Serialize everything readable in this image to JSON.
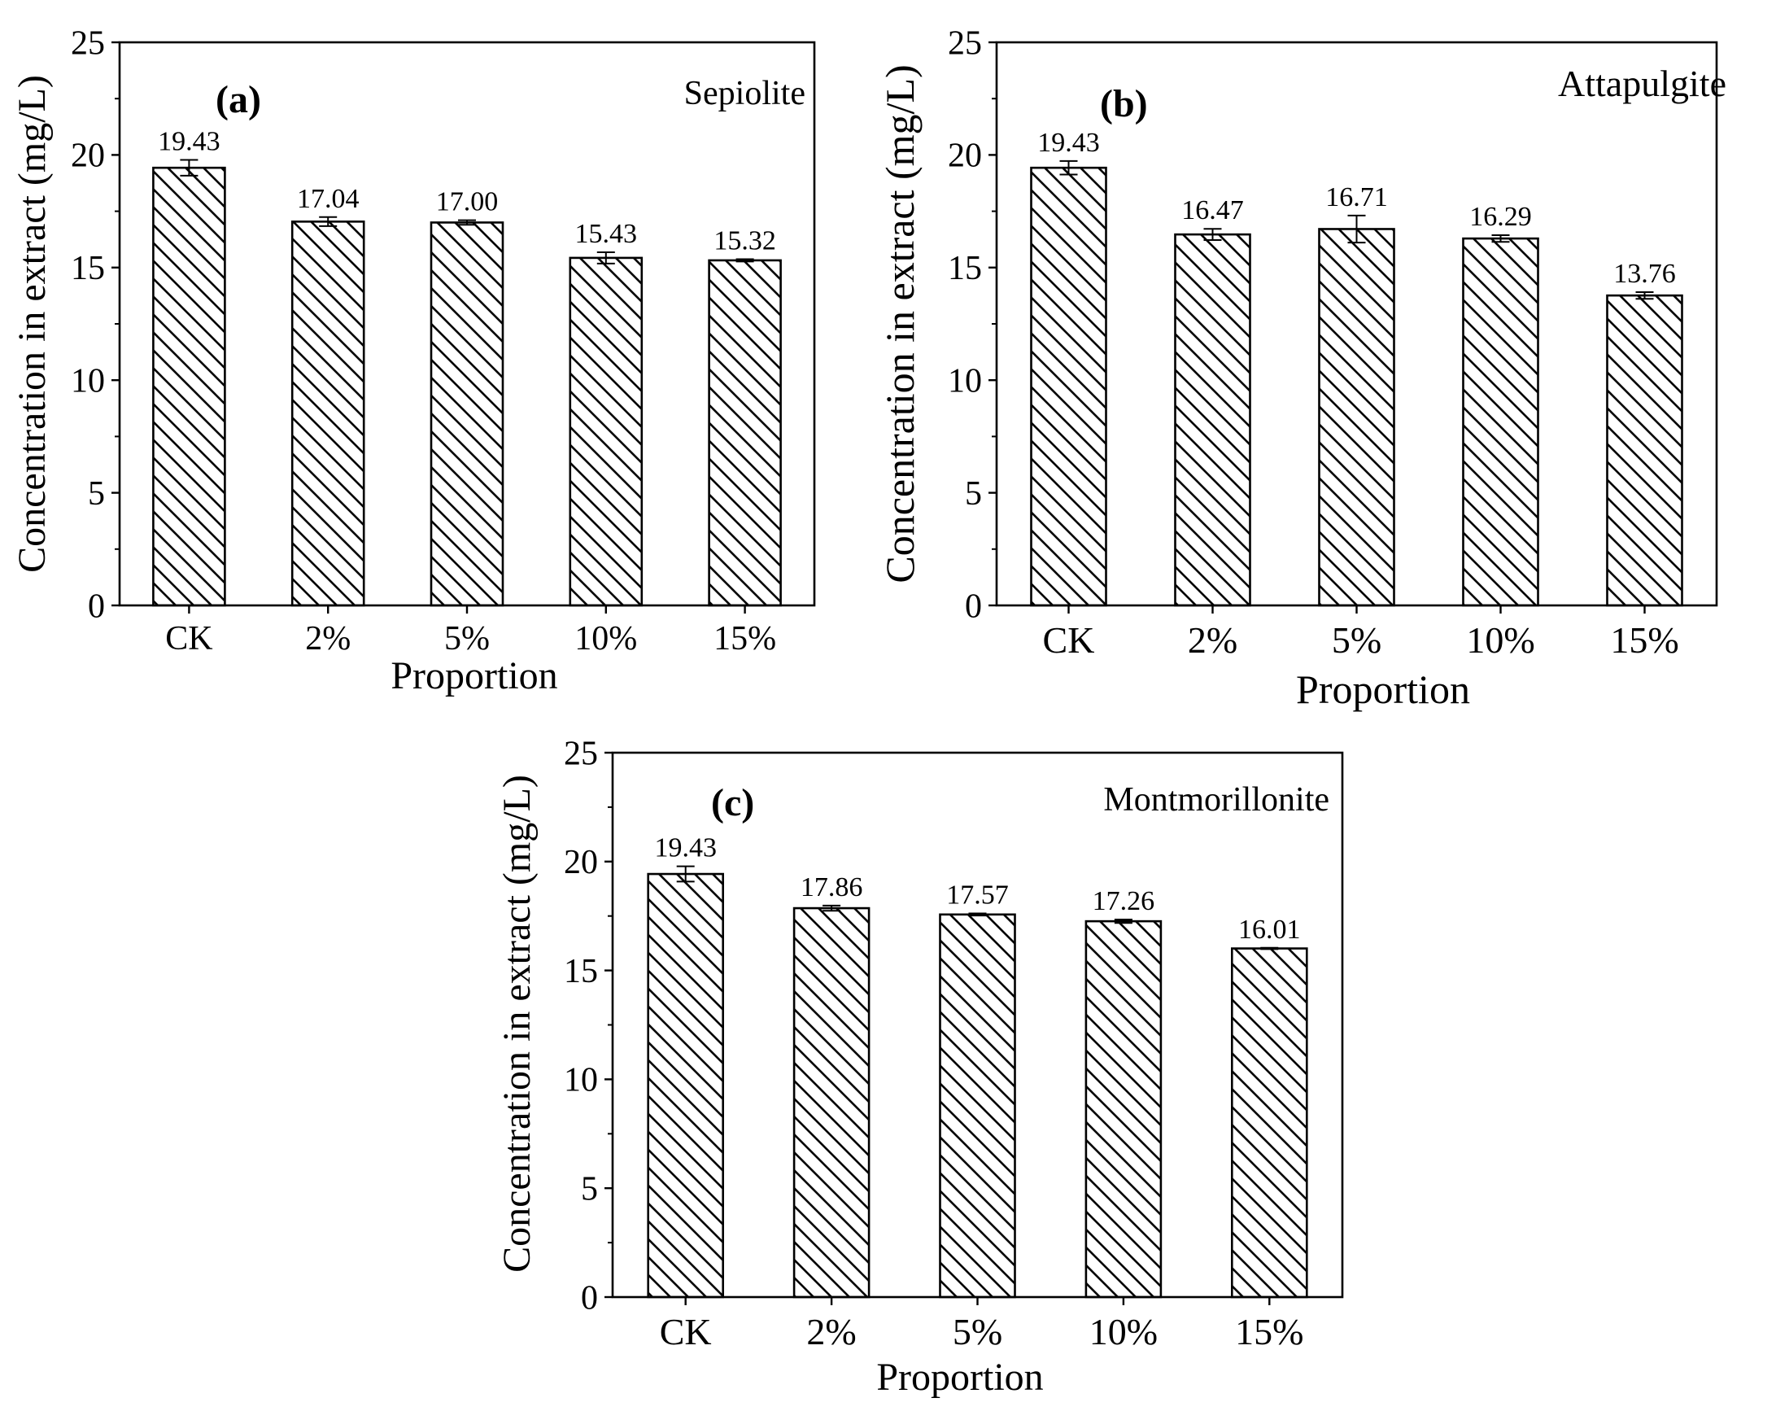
{
  "figure": {
    "hatch_color": "#000000",
    "bar_fill": "#ffffff"
  },
  "chart_data": [
    {
      "type": "bar",
      "panel": "(a)",
      "title": "Sepiolite",
      "xlabel": "Proportion",
      "ylabel": "Concentration in extract (mg/L)",
      "categories": [
        "CK",
        "2%",
        "5%",
        "10%",
        "15%"
      ],
      "values": [
        19.43,
        17.04,
        17.0,
        15.43,
        15.32
      ],
      "value_labels": [
        "19.43",
        "17.04",
        "17.00",
        "15.43",
        "15.32"
      ],
      "errors": [
        0.35,
        0.2,
        0.1,
        0.25,
        0.05
      ],
      "ylim": [
        0,
        25
      ],
      "yticks": [
        0,
        5,
        10,
        15,
        20,
        25
      ],
      "ytick_labels": [
        "0",
        "5",
        "10",
        "15",
        "20",
        "25"
      ]
    },
    {
      "type": "bar",
      "panel": "(b)",
      "title": "Attapulgite",
      "xlabel": "Proportion",
      "ylabel": "Concentration in extract (mg/L)",
      "categories": [
        "CK",
        "2%",
        "5%",
        "10%",
        "15%"
      ],
      "values": [
        19.43,
        16.47,
        16.71,
        16.29,
        13.76
      ],
      "value_labels": [
        "19.43",
        "16.47",
        "16.71",
        "16.29",
        "13.76"
      ],
      "errors": [
        0.3,
        0.25,
        0.6,
        0.15,
        0.15
      ],
      "ylim": [
        0,
        25
      ],
      "yticks": [
        0,
        5,
        10,
        15,
        20,
        25
      ],
      "ytick_labels": [
        "0",
        "5",
        "10",
        "15",
        "20",
        "25"
      ]
    },
    {
      "type": "bar",
      "panel": "(c)",
      "title": "Montmorillonite",
      "xlabel": "Proportion",
      "ylabel": "Concentration in extract (mg/L)",
      "categories": [
        "CK",
        "2%",
        "5%",
        "10%",
        "15%"
      ],
      "values": [
        19.43,
        17.86,
        17.57,
        17.26,
        16.01
      ],
      "value_labels": [
        "19.43",
        "17.86",
        "17.57",
        "17.26",
        "16.01"
      ],
      "errors": [
        0.35,
        0.12,
        0.05,
        0.08,
        0.03
      ],
      "ylim": [
        0,
        25
      ],
      "yticks": [
        0,
        5,
        10,
        15,
        20,
        25
      ],
      "ytick_labels": [
        "0",
        "5",
        "10",
        "15",
        "20",
        "25"
      ]
    }
  ]
}
